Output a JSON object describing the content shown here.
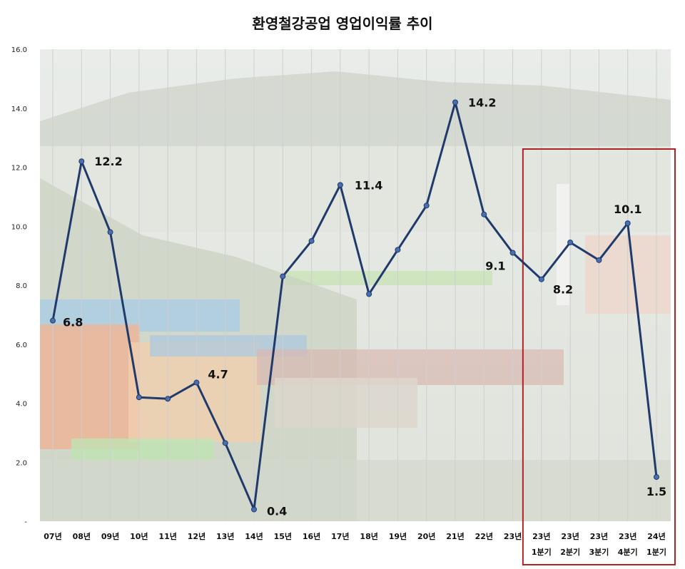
{
  "chart_data": {
    "type": "line",
    "title": "환영철강공업 영업이익률 추이",
    "xlabel": "",
    "ylabel": "",
    "ylim": [
      0,
      16
    ],
    "y_ticks": [
      "-",
      "2.0",
      "4.0",
      "6.0",
      "8.0",
      "10.0",
      "12.0",
      "14.0",
      "16.0"
    ],
    "categories": [
      [
        "07년"
      ],
      [
        "08년"
      ],
      [
        "09년"
      ],
      [
        "10년"
      ],
      [
        "11년"
      ],
      [
        "12년"
      ],
      [
        "13년"
      ],
      [
        "14년"
      ],
      [
        "15년"
      ],
      [
        "16년"
      ],
      [
        "17년"
      ],
      [
        "18년"
      ],
      [
        "19년"
      ],
      [
        "20년"
      ],
      [
        "21년"
      ],
      [
        "22년"
      ],
      [
        "23년"
      ],
      [
        "23년",
        "1분기"
      ],
      [
        "23년",
        "2분기"
      ],
      [
        "23년",
        "3분기"
      ],
      [
        "23년",
        "4분기"
      ],
      [
        "24년",
        "1분기"
      ]
    ],
    "values": [
      6.8,
      12.2,
      9.8,
      4.2,
      4.15,
      4.7,
      2.65,
      0.4,
      8.3,
      9.5,
      11.4,
      7.7,
      9.2,
      10.7,
      14.2,
      10.4,
      9.1,
      8.2,
      9.45,
      8.85,
      10.1,
      1.5
    ],
    "data_labels": [
      {
        "index": 0,
        "text": "6.8"
      },
      {
        "index": 1,
        "text": "12.2"
      },
      {
        "index": 5,
        "text": "4.7"
      },
      {
        "index": 7,
        "text": "0.4"
      },
      {
        "index": 10,
        "text": "11.4"
      },
      {
        "index": 14,
        "text": "14.2"
      },
      {
        "index": 16,
        "text": "9.1"
      },
      {
        "index": 17,
        "text": "8.2"
      },
      {
        "index": 20,
        "text": "10.1"
      },
      {
        "index": 21,
        "text": "1.5"
      }
    ],
    "highlight_range": [
      17,
      21
    ],
    "grid": true,
    "legend": "none",
    "colors": {
      "line": "#1f3a6b",
      "marker": "#4a6fb0",
      "highlight_box": "#b22222",
      "grid": "#cfcfcf",
      "background_photo_tint": "#e8e6df"
    }
  }
}
